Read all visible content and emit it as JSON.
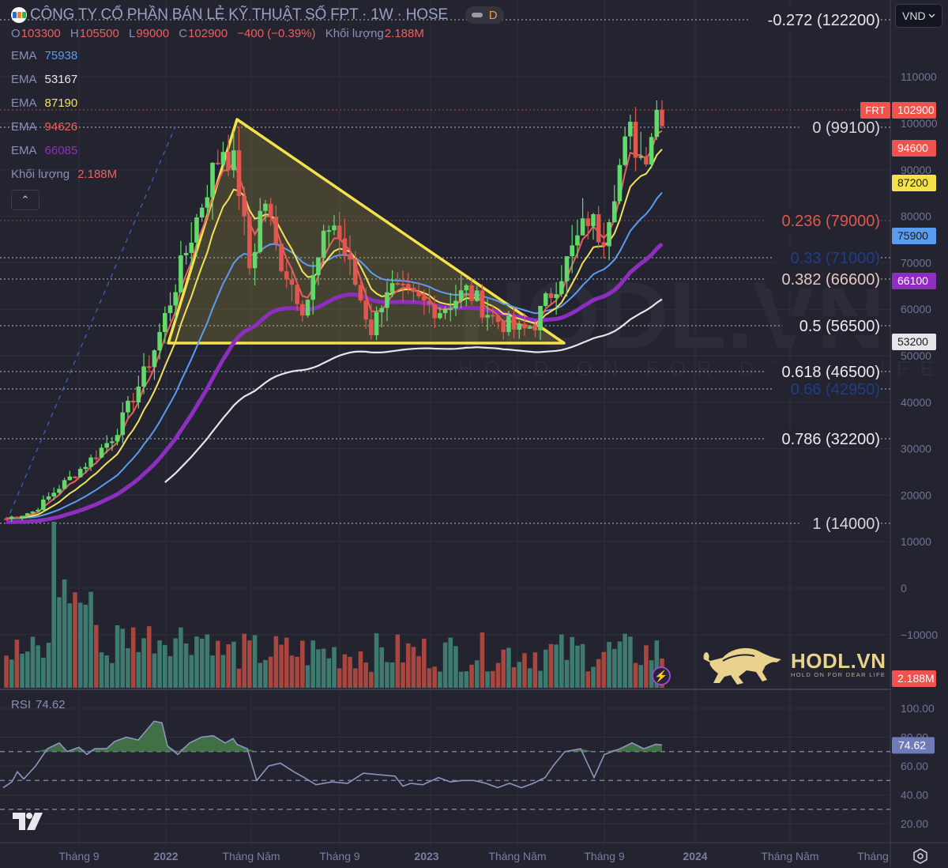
{
  "header": {
    "title": "CÔNG TY CỔ PHẦN BÁN LẺ KỸ THUẬT SỐ FPT · 1W · HOSE",
    "status_badge": "D",
    "ohlc": {
      "open_label": "O",
      "open": "103300",
      "high_label": "H",
      "high": "105500",
      "low_label": "L",
      "low": "99000",
      "close_label": "C",
      "close": "102900",
      "change": "−400 (−0.39%)",
      "volume_label": "Khối lượng",
      "volume": "2.188M"
    }
  },
  "indicators": [
    {
      "label": "EMA",
      "value": "75938",
      "color": "#5b9cf0"
    },
    {
      "label": "EMA",
      "value": "53167",
      "color": "#e6e6ea"
    },
    {
      "label": "EMA",
      "value": "87190",
      "color": "#f3e25c"
    },
    {
      "label": "EMA",
      "value": "94626",
      "color": "#ef5e5e"
    },
    {
      "label": "EMA",
      "value": "66085",
      "color": "#8e2ec0"
    },
    {
      "label": "Khối lượng",
      "value": "2.188M",
      "color": "#ef5e5e"
    }
  ],
  "currency_selector": {
    "value": "VND",
    "icon": "chevron-down-icon"
  },
  "collapse_button": {
    "icon": "chevron-up-icon",
    "glyph": "⌃"
  },
  "rsi": {
    "label": "RSI",
    "value": "74.62"
  },
  "watermark": {
    "brand": "HODL.VN",
    "tagline": "HOLD ON FOR DEAR LIFE",
    "center_brand": "HODL.VN",
    "center_tagline": "HOLD ON FOR DEAR LIFE"
  },
  "colors": {
    "background": "#232430",
    "up": "#63d86b",
    "down": "#e0574f",
    "vol_up": "#3e7a6e",
    "vol_down": "#a8463f",
    "triangle": "#f5e24a",
    "grid": "#2e303d",
    "axis_text": "#6f7396"
  },
  "chart_data": [
    {
      "type": "candlestick",
      "title": "CÔNG TY CỔ PHẦN BÁN LẺ KỸ THUẬT SỐ FPT · 1W · HOSE",
      "symbol": "FRT",
      "interval": "1W",
      "exchange": "HOSE",
      "ylabel": "VND",
      "ylim": [
        -20000,
        130000
      ],
      "y_ticks": [
        110000,
        100000,
        90000,
        80000,
        70000,
        60000,
        50000,
        40000,
        30000,
        20000,
        10000,
        0,
        -10000
      ],
      "x_ticks": [
        "Tháng 9",
        "2022",
        "Tháng Năm",
        "Tháng 9",
        "2023",
        "Tháng Năm",
        "Tháng 9",
        "2024",
        "Tháng Năm",
        "Tháng"
      ],
      "last": {
        "open": 103300,
        "high": 105500,
        "low": 99000,
        "close": 102900,
        "change": -400,
        "change_pct": -0.39
      },
      "price_labels": [
        {
          "text": "FRT",
          "value": "102900",
          "color": "#ef5350",
          "y": 139
        },
        {
          "value": "94600",
          "color": "#ef5350",
          "y": 187
        },
        {
          "value": "87200",
          "color": "#f5e24a",
          "text_color": "#1a1a1a",
          "y": 231
        },
        {
          "value": "75900",
          "color": "#5b9cf0",
          "text_color": "#1a1a1a",
          "y": 298
        },
        {
          "value": "66100",
          "color": "#8e2ec0",
          "y": 355
        },
        {
          "value": "53200",
          "color": "#e6e6ea",
          "text_color": "#1a1a1a",
          "y": 432
        },
        {
          "value": "2.188M",
          "color": "#ef5350",
          "y": 858
        }
      ],
      "fibonacci": [
        {
          "level": "-0.272",
          "price": 122200,
          "label": "-0.272 (122200)",
          "color": "#e6e8ee",
          "y": 25
        },
        {
          "level": "0",
          "price": 99100,
          "label": "0 (99100)",
          "color": "#d6d8e0",
          "y": 161
        },
        {
          "level": "0.236",
          "price": 79000,
          "label": "0.236 (79000)",
          "color": "#e0574f",
          "y": 279
        },
        {
          "level": "0.33",
          "price": 71000,
          "label": "0.33 (71000)",
          "color": "#1e3d8a",
          "y": 326
        },
        {
          "level": "0.382",
          "price": 66600,
          "label": "0.382 (66600)",
          "color": "#e8c7c0",
          "y": 353
        },
        {
          "level": "0.5",
          "price": 56500,
          "label": "0.5 (56500)",
          "color": "#ececf0",
          "y": 412
        },
        {
          "level": "0.618",
          "price": 46500,
          "label": "0.618 (46500)",
          "color": "#ececf0",
          "y": 470
        },
        {
          "level": "0.66",
          "price": 42950,
          "label": "0.66 (42950)",
          "color": "#1e3d8a",
          "y": 492
        },
        {
          "level": "0.786",
          "price": 32200,
          "label": "0.786 (32200)",
          "color": "#ececf0",
          "y": 555
        },
        {
          "level": "1",
          "price": 14000,
          "label": "1 (14000)",
          "color": "#d6d8e0",
          "y": 662
        }
      ],
      "annotations": [
        "Descending triangle drawn from ~2022 peak (~101000) to mid-2023 breakout",
        "Triangle base ~54000"
      ],
      "series": [
        {
          "name": "EMA",
          "value": 75938,
          "color": "#5b9cf0"
        },
        {
          "name": "EMA",
          "value": 53167,
          "color": "#e6e6ea"
        },
        {
          "name": "EMA",
          "value": 87190,
          "color": "#f3e25c"
        },
        {
          "name": "EMA",
          "value": 94626,
          "color": "#ef5e5e"
        },
        {
          "name": "EMA",
          "value": 66085,
          "color": "#8e2ec0"
        }
      ],
      "close_path_approx": [
        [
          2021.45,
          15000
        ],
        [
          2021.55,
          16500
        ],
        [
          2021.65,
          22000
        ],
        [
          2021.75,
          27000
        ],
        [
          2021.85,
          33000
        ],
        [
          2021.95,
          45000
        ],
        [
          2022.0,
          52000
        ],
        [
          2022.1,
          70000
        ],
        [
          2022.2,
          88000
        ],
        [
          2022.25,
          95000
        ],
        [
          2022.3,
          90000
        ],
        [
          2022.35,
          68000
        ],
        [
          2022.4,
          85000
        ],
        [
          2022.45,
          72000
        ],
        [
          2022.55,
          60000
        ],
        [
          2022.65,
          80000
        ],
        [
          2022.7,
          72000
        ],
        [
          2022.8,
          55000
        ],
        [
          2022.85,
          65000
        ],
        [
          2022.95,
          62000
        ],
        [
          2023.05,
          60000
        ],
        [
          2023.15,
          64000
        ],
        [
          2023.25,
          58000
        ],
        [
          2023.35,
          55000
        ],
        [
          2023.4,
          57000
        ],
        [
          2023.5,
          68000
        ],
        [
          2023.6,
          80000
        ],
        [
          2023.65,
          75000
        ],
        [
          2023.7,
          88000
        ],
        [
          2023.75,
          98000
        ],
        [
          2023.8,
          92000
        ],
        [
          2023.85,
          103000
        ]
      ]
    },
    {
      "type": "bar",
      "title": "Khối lượng",
      "last_value": "2.188M",
      "note": "weekly volume bars, green=up week, red=down week; peak early in series"
    },
    {
      "type": "line",
      "title": "RSI",
      "last_value": 74.62,
      "ylim": [
        10,
        105
      ],
      "y_ticks": [
        "100.00",
        "80.00",
        "60.00",
        "40.00",
        "20.00"
      ],
      "bands": [
        70,
        50,
        30
      ],
      "overbought_fill_color": "#4c8a4e"
    }
  ]
}
